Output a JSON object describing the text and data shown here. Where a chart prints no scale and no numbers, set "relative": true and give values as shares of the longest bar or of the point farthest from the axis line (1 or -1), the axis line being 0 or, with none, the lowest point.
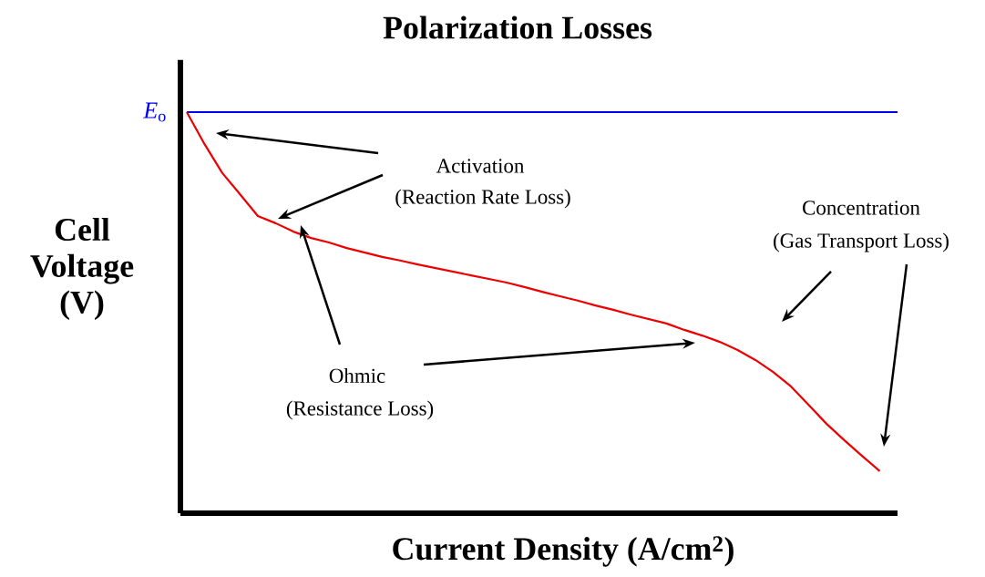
{
  "chart_data": {
    "type": "line",
    "title": "Polarization Losses",
    "xlabel": "Current Density (A/cm$^{2}$)",
    "ylabel": "Cell Voltage (V)",
    "relative": true,
    "categories": [
      null,
      null,
      null,
      null,
      null,
      null,
      null,
      null,
      null,
      null,
      null,
      null,
      null,
      null,
      null,
      null,
      null,
      null,
      null,
      null,
      null,
      null,
      null,
      null,
      null,
      null,
      null,
      null,
      null,
      null,
      null,
      null,
      null,
      null,
      null,
      null,
      null,
      null,
      null,
      null,
      null
    ],
    "series": [
      {
        "name": "*E*$_{o}$",
        "color": "#0000ee",
        "values": [
          1,
          1,
          1,
          1,
          1,
          1,
          1,
          1,
          1,
          1,
          1,
          1,
          1,
          1,
          1,
          1,
          1,
          1,
          1,
          1,
          1,
          1,
          1,
          1,
          1,
          1,
          1,
          1,
          1,
          1,
          1,
          1,
          1,
          1,
          1,
          1,
          1,
          1,
          1,
          1,
          1
        ]
      },
      {
        "color": "#ee0000",
        "values": [
          1.0,
          0.92,
          0.848,
          0.795,
          0.741,
          0.723,
          0.702,
          0.686,
          0.675,
          0.661,
          0.65,
          0.639,
          0.63,
          0.62,
          0.611,
          0.602,
          0.593,
          0.584,
          0.575,
          0.564,
          0.552,
          0.541,
          0.53,
          0.518,
          0.507,
          0.495,
          0.484,
          0.473,
          0.457,
          0.443,
          0.427,
          0.407,
          0.382,
          0.352,
          0.316,
          0.27,
          0.223,
          0.182,
          0.143,
          0.105,
          null
        ]
      }
    ],
    "annotations": [
      "Activation",
      "(Reaction Rate Loss)",
      "Concentration",
      "(Gas Transport Loss)",
      "Ohmic",
      "(Resistance Loss)"
    ]
  }
}
